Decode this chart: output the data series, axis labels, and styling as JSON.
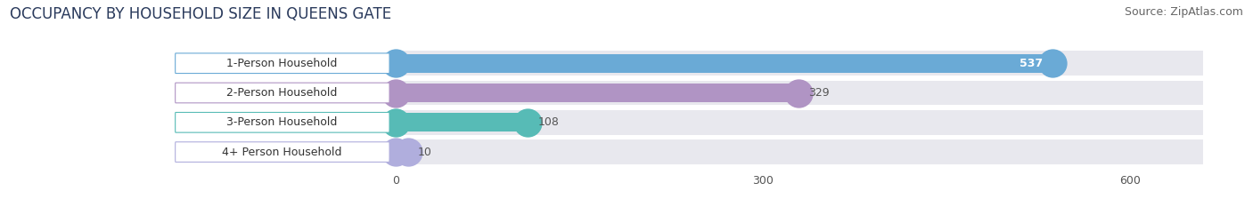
{
  "title": "OCCUPANCY BY HOUSEHOLD SIZE IN QUEENS GATE",
  "source": "Source: ZipAtlas.com",
  "categories": [
    "1-Person Household",
    "2-Person Household",
    "3-Person Household",
    "4+ Person Household"
  ],
  "values": [
    537,
    329,
    108,
    10
  ],
  "bar_colors": [
    "#6aaad6",
    "#b094c4",
    "#57bbb6",
    "#b0aedd"
  ],
  "xlim": [
    -185,
    680
  ],
  "xticks": [
    0,
    300,
    600
  ],
  "title_fontsize": 12,
  "source_fontsize": 9,
  "label_fontsize": 9,
  "value_fontsize": 9,
  "bar_height": 0.62,
  "background_color": "#ffffff",
  "bar_bg_color": "#e8e8ee"
}
